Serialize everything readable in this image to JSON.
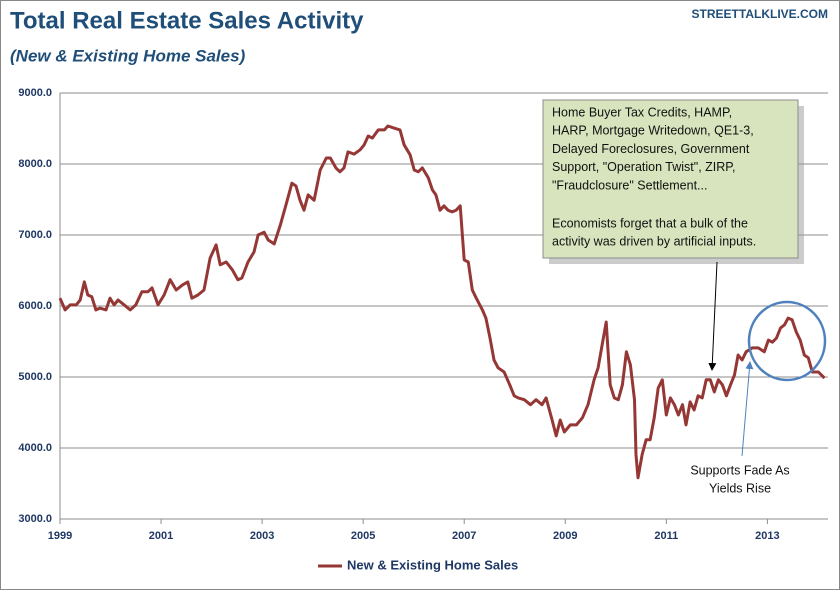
{
  "chart_data": {
    "type": "line",
    "title": "Total Real Estate Sales Activity",
    "subtitle": "(New & Existing Home Sales)",
    "watermark": "STREETTALKLIVE.COM",
    "x": [
      1999.0,
      1999.1,
      1999.2,
      1999.32,
      1999.4,
      1999.48,
      1999.55,
      1999.63,
      1999.71,
      1999.79,
      1999.91,
      1999.99,
      2000.07,
      2000.15,
      2000.27,
      2000.39,
      2000.5,
      2000.62,
      2000.74,
      2000.82,
      2000.94,
      2001.06,
      2001.18,
      2001.3,
      2001.42,
      2001.53,
      2001.61,
      2001.73,
      2001.85,
      2001.97,
      2002.09,
      2002.17,
      2002.29,
      2002.41,
      2002.52,
      2002.6,
      2002.72,
      2002.84,
      2002.92,
      2003.04,
      2003.12,
      2003.24,
      2003.36,
      2003.47,
      2003.59,
      2003.67,
      2003.75,
      2003.83,
      2003.91,
      2004.03,
      2004.15,
      2004.27,
      2004.35,
      2004.46,
      2004.54,
      2004.62,
      2004.7,
      2004.82,
      2004.94,
      2005.02,
      2005.1,
      2005.18,
      2005.3,
      2005.42,
      2005.49,
      2005.61,
      2005.73,
      2005.81,
      2005.93,
      2006.01,
      2006.09,
      2006.17,
      2006.29,
      2006.37,
      2006.44,
      2006.52,
      2006.6,
      2006.68,
      2006.76,
      2006.84,
      2006.92,
      2007.0,
      2007.08,
      2007.16,
      2007.24,
      2007.36,
      2007.43,
      2007.51,
      2007.59,
      2007.67,
      2007.79,
      2007.91,
      2007.99,
      2008.07,
      2008.19,
      2008.31,
      2008.42,
      2008.54,
      2008.62,
      2008.74,
      2008.82,
      2008.9,
      2008.98,
      2009.1,
      2009.22,
      2009.34,
      2009.45,
      2009.57,
      2009.65,
      2009.73,
      2009.81,
      2009.89,
      2009.97,
      2010.05,
      2010.13,
      2010.21,
      2010.29,
      2010.37,
      2010.4,
      2010.44,
      2010.52,
      2010.6,
      2010.68,
      2010.76,
      2010.84,
      2010.92,
      2011.0,
      2011.08,
      2011.16,
      2011.24,
      2011.32,
      2011.39,
      2011.47,
      2011.55,
      2011.63,
      2011.71,
      2011.79,
      2011.87,
      2011.95,
      2012.03,
      2012.11,
      2012.19,
      2012.27,
      2012.35,
      2012.42,
      2012.5,
      2012.58,
      2012.7,
      2012.82,
      2012.94,
      2013.02,
      2013.1,
      2013.18,
      2013.26,
      2013.34,
      2013.41,
      2013.49,
      2013.57,
      2013.65,
      2013.73,
      2013.81,
      2013.89,
      2014.01,
      2014.13
    ],
    "series": [
      {
        "name": "New & Existing Home Sales",
        "color": "#953735",
        "values": [
          6110,
          5945,
          6015,
          6015,
          6085,
          6340,
          6155,
          6130,
          5945,
          5970,
          5945,
          6110,
          6015,
          6085,
          6015,
          5945,
          6015,
          6200,
          6200,
          6255,
          6015,
          6155,
          6370,
          6225,
          6295,
          6340,
          6110,
          6155,
          6225,
          6675,
          6860,
          6580,
          6620,
          6510,
          6370,
          6395,
          6620,
          6760,
          7000,
          7040,
          6930,
          6875,
          7140,
          7420,
          7730,
          7690,
          7490,
          7350,
          7565,
          7490,
          7915,
          8085,
          8085,
          7945,
          7890,
          7945,
          8170,
          8140,
          8200,
          8270,
          8395,
          8365,
          8480,
          8480,
          8535,
          8505,
          8480,
          8270,
          8130,
          7915,
          7890,
          7945,
          7805,
          7635,
          7565,
          7350,
          7410,
          7350,
          7325,
          7350,
          7410,
          6650,
          6620,
          6225,
          6110,
          5945,
          5830,
          5550,
          5240,
          5130,
          5070,
          4875,
          4735,
          4705,
          4680,
          4610,
          4680,
          4610,
          4705,
          4395,
          4170,
          4395,
          4225,
          4325,
          4325,
          4425,
          4610,
          4960,
          5130,
          5450,
          5775,
          4890,
          4705,
          4680,
          4890,
          5355,
          5170,
          4680,
          3905,
          3580,
          3905,
          4115,
          4115,
          4425,
          4845,
          4960,
          4465,
          4705,
          4610,
          4465,
          4610,
          4325,
          4650,
          4535,
          4735,
          4705,
          4960,
          4960,
          4790,
          4960,
          4890,
          4735,
          4890,
          5030,
          5310,
          5240,
          5355,
          5410,
          5410,
          5355,
          5520,
          5490,
          5550,
          5690,
          5735,
          5830,
          5805,
          5635,
          5520,
          5310,
          5270,
          5070,
          5070,
          4985
        ]
      }
    ],
    "xlim": [
      1999,
      2014.2
    ],
    "xticks": [
      1999,
      2001,
      2003,
      2005,
      2007,
      2009,
      2011,
      2013
    ],
    "ylim": [
      3000,
      9000
    ],
    "yticks": [
      {
        "value": 3000,
        "label": "3000.0"
      },
      {
        "value": 4000,
        "label": "4000.0"
      },
      {
        "value": 5000,
        "label": "5000.0"
      },
      {
        "value": 6000,
        "label": "6000.0"
      },
      {
        "value": 7000,
        "label": "7000.0"
      },
      {
        "value": 8000,
        "label": "8000.0"
      },
      {
        "value": 9000,
        "label": "9000.0"
      }
    ],
    "grid": true,
    "legend": "bottom",
    "annotations": [
      {
        "lines": [
          "Home Buyer Tax Credits, HAMP,",
          "HARP, Mortgage Writedown,  QE1-3,",
          "Delayed Foreclosures, Government",
          "Support, \"Operation Twist\", ZIRP,",
          "\"Fraudclosure\" Settlement..."
        ]
      },
      {
        "lines": [
          "Economists forget that a bulk of the",
          "activity was driven by artificial inputs."
        ]
      },
      {
        "lines": [
          "Supports Fade  As",
          "Yields Rise"
        ]
      }
    ]
  }
}
